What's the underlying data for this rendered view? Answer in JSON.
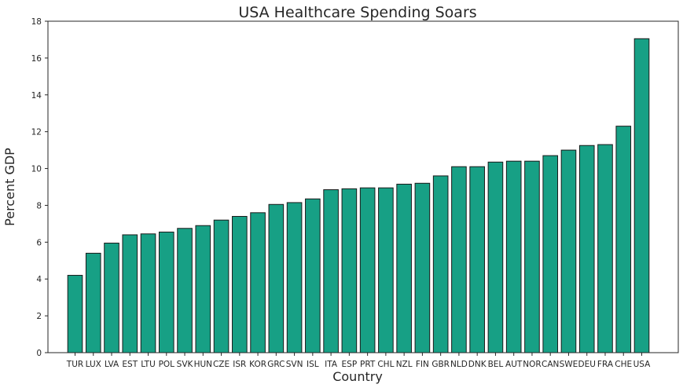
{
  "chart_data": {
    "type": "bar",
    "title": "USA Healthcare Spending Soars",
    "xlabel": "Country",
    "ylabel": "Percent GDP",
    "ylim": [
      0,
      18
    ],
    "yticks": [
      0,
      2,
      4,
      6,
      8,
      10,
      12,
      14,
      16,
      18
    ],
    "grid": false,
    "bar_color": "#17a085",
    "edge_color": "#1a1a1a",
    "categories": [
      "TUR",
      "LUX",
      "LVA",
      "EST",
      "LTU",
      "POL",
      "SVK",
      "HUN",
      "CZE",
      "ISR",
      "KOR",
      "GRC",
      "SVN",
      "ISL",
      "ITA",
      "ESP",
      "PRT",
      "CHL",
      "NZL",
      "FIN",
      "GBR",
      "NLD",
      "DNK",
      "BEL",
      "AUT",
      "NOR",
      "CAN",
      "SWE",
      "DEU",
      "FRA",
      "CHE",
      "USA"
    ],
    "values": [
      4.2,
      5.4,
      5.95,
      6.4,
      6.45,
      6.55,
      6.75,
      6.9,
      7.2,
      7.4,
      7.6,
      8.05,
      8.15,
      8.35,
      8.85,
      8.9,
      8.95,
      8.95,
      9.15,
      9.2,
      9.6,
      10.1,
      10.1,
      10.35,
      10.4,
      10.4,
      10.7,
      11.0,
      11.25,
      11.3,
      12.3,
      17.05
    ]
  }
}
